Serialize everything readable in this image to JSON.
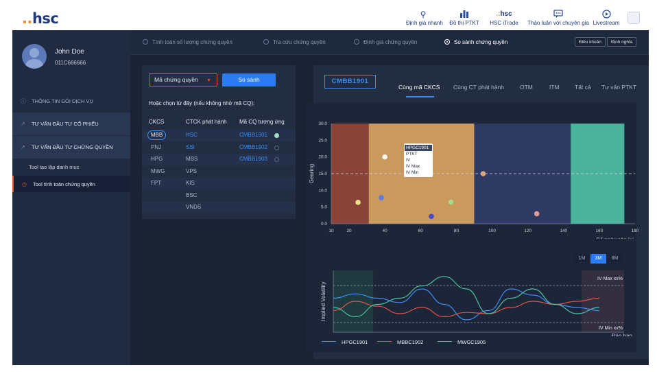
{
  "app": {
    "logo_dots": "..",
    "logo_text": "hsc"
  },
  "topnav": [
    {
      "label": "Định giá nhanh",
      "icon": "search-icon"
    },
    {
      "label": "Đồ thị PTKT",
      "icon": "bar-chart-icon"
    },
    {
      "label": "HSC iTrade",
      "icon": "hsc-logo-icon"
    },
    {
      "label": "Thảo luận với chuyên gia",
      "icon": "chat-icon"
    },
    {
      "label": "Livestream",
      "icon": "play-circle-icon"
    }
  ],
  "user": {
    "name": "John Doe",
    "id": "011C666666"
  },
  "sidebar": {
    "items": [
      {
        "label": "THÔNG TIN GÓI DỊCH VỤ",
        "icon": "info-icon"
      },
      {
        "label": "TƯ VẤN ĐẦU TƯ CỔ PHIẾU",
        "icon": "trend-icon"
      },
      {
        "label": "TƯ VẤN ĐẦU TƯ CHỨNG QUYỀN",
        "icon": "trend-icon"
      },
      {
        "label": "Tool tạo lập danh mục",
        "icon": ""
      },
      {
        "label": "Tool tính toán chứng quyền",
        "icon": "clock-icon"
      }
    ]
  },
  "steps": [
    {
      "label": "Tính toán số lượng chứng quyền",
      "active": false
    },
    {
      "label": "Tra cứu chứng quyền",
      "active": false
    },
    {
      "label": "Định giá chứng quyền",
      "active": false
    },
    {
      "label": "So sánh chứng quyền",
      "active": true
    }
  ],
  "step_buttons": {
    "terms": "Điều khoản",
    "definitions": "Định nghĩa"
  },
  "compare": {
    "select_label": "Mã chứng quyền",
    "compare_button": "So sánh",
    "hint": "Hoặc chọn từ đây (nếu không nhớ mã CQ):",
    "headers": [
      "CKCS",
      "CTCK phát hành",
      "Mã CQ tương ứng"
    ],
    "rows": [
      {
        "ckcs": "MBB",
        "ctck": "HSC",
        "cq": "CMBB1901",
        "selected": true
      },
      {
        "ckcs": "PNJ",
        "ctck": "SSI",
        "cq": "CMBB1902",
        "selected": false
      },
      {
        "ckcs": "HPG",
        "ctck": "MBS",
        "cq": "CMBB1903",
        "selected": false
      },
      {
        "ckcs": "MWG",
        "ctck": "VPS",
        "cq": "",
        "selected": false
      },
      {
        "ckcs": "FPT",
        "ctck": "KIS",
        "cq": "",
        "selected": false
      },
      {
        "ckcs": "",
        "ctck": "BSC",
        "cq": "",
        "selected": false
      },
      {
        "ckcs": "",
        "ctck": "VNDS",
        "cq": "",
        "selected": false
      }
    ]
  },
  "main": {
    "code": "CMBB1901",
    "tabs": [
      {
        "label": "Cùng mã CKCS",
        "active": true
      },
      {
        "label": "Cùng CT phát hành",
        "active": false
      },
      {
        "label": "OTM",
        "active": false
      },
      {
        "label": "ITM",
        "active": false
      },
      {
        "label": "Tất cả",
        "active": false
      },
      {
        "label": "Tư vấn PTKT",
        "active": false
      }
    ],
    "range_buttons": [
      {
        "label": "1M",
        "active": false
      },
      {
        "label": "3M",
        "active": true
      },
      {
        "label": "6M",
        "active": false
      }
    ],
    "tooltip": [
      "HPGC1901",
      "PTKT",
      "IV",
      "IV Max",
      "IV Min"
    ]
  },
  "chart_data": [
    {
      "type": "scatter",
      "xlabel": "Số ngày còn lại",
      "ylabel": "Gearing",
      "xlim": [
        10,
        180
      ],
      "ylim": [
        0,
        30
      ],
      "xticks": [
        10,
        20,
        40,
        60,
        80,
        100,
        120,
        140,
        160,
        180
      ],
      "yticks": [
        0.0,
        5.0,
        10.0,
        15.0,
        20.0,
        25.0,
        30.0
      ],
      "reference_y": 15,
      "bands": [
        {
          "x0": 10,
          "x1": 31,
          "color": "#8a4339"
        },
        {
          "x0": 31,
          "x1": 90,
          "color": "#c9995e"
        },
        {
          "x0": 90,
          "x1": 144,
          "color": "#2f3a63"
        },
        {
          "x0": 144,
          "x1": 174,
          "color": "#4bb39c"
        }
      ],
      "points": [
        {
          "x": 40,
          "y": 20,
          "color": "#f5f5f5"
        },
        {
          "x": 38,
          "y": 7.8,
          "color": "#5b7ee0"
        },
        {
          "x": 25,
          "y": 6.4,
          "color": "#efe08a"
        },
        {
          "x": 66,
          "y": 2.2,
          "color": "#4747c9"
        },
        {
          "x": 77,
          "y": 6.5,
          "color": "#a6d98a"
        },
        {
          "x": 95,
          "y": 15,
          "color": "#d9a57a"
        },
        {
          "x": 125,
          "y": 3,
          "color": "#e79a9a"
        }
      ],
      "grid": false
    },
    {
      "type": "line",
      "xlabel": "Đáo hạn",
      "ylabel": "Implied Volatility",
      "annotations": [
        "IV Max xx%",
        "IV Min xx%"
      ],
      "x": [
        0,
        1,
        2,
        3,
        4,
        5,
        6,
        7,
        8,
        9,
        10,
        11,
        12
      ],
      "ylim": [
        0,
        100
      ],
      "series": [
        {
          "name": "HPGC1901",
          "color": "#3d8ef5",
          "values": [
            55,
            62,
            55,
            48,
            70,
            45,
            20,
            35,
            70,
            60,
            45,
            40,
            35
          ]
        },
        {
          "name": "MBBC1902",
          "color": "#e0534a",
          "values": [
            35,
            50,
            42,
            30,
            40,
            25,
            32,
            30,
            40,
            50,
            45,
            50,
            55
          ]
        },
        {
          "name": "MWGC1905",
          "color": "#4bc2a6",
          "values": [
            40,
            25,
            45,
            55,
            75,
            90,
            70,
            30,
            55,
            70,
            45,
            30,
            40
          ]
        }
      ],
      "bands": [
        {
          "x0": 0,
          "x1": 1.8
        },
        {
          "x0": 11.2,
          "x1": 12.5
        }
      ]
    }
  ]
}
